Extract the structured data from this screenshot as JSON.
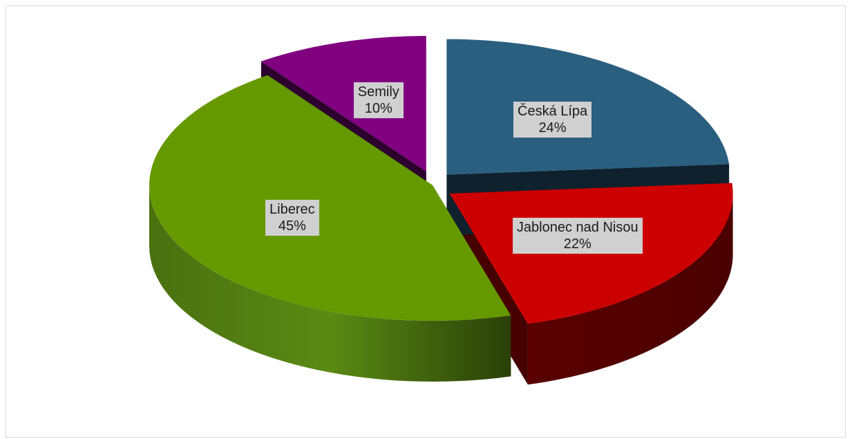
{
  "chart_data": {
    "type": "pie",
    "title": "",
    "categories": [
      "Česká Lípa",
      "Jablonec nad Nisou",
      "Liberec",
      "Semily"
    ],
    "values": [
      24,
      22,
      45,
      10
    ],
    "labels": [
      {
        "name": "Česká Lípa",
        "percent": "24%"
      },
      {
        "name": "Jablonec nad Nisou",
        "percent": "22%"
      },
      {
        "name": "Liberec",
        "percent": "45%"
      },
      {
        "name": "Semily",
        "percent": "10%"
      }
    ],
    "colors": [
      "#2a5f80",
      "#cc0000",
      "#669900",
      "#800080"
    ],
    "exploded": [
      "Česká Lípa",
      "Jablonec nad Nisou",
      "Semily"
    ],
    "legend": "none",
    "style": "3d-exploded"
  }
}
